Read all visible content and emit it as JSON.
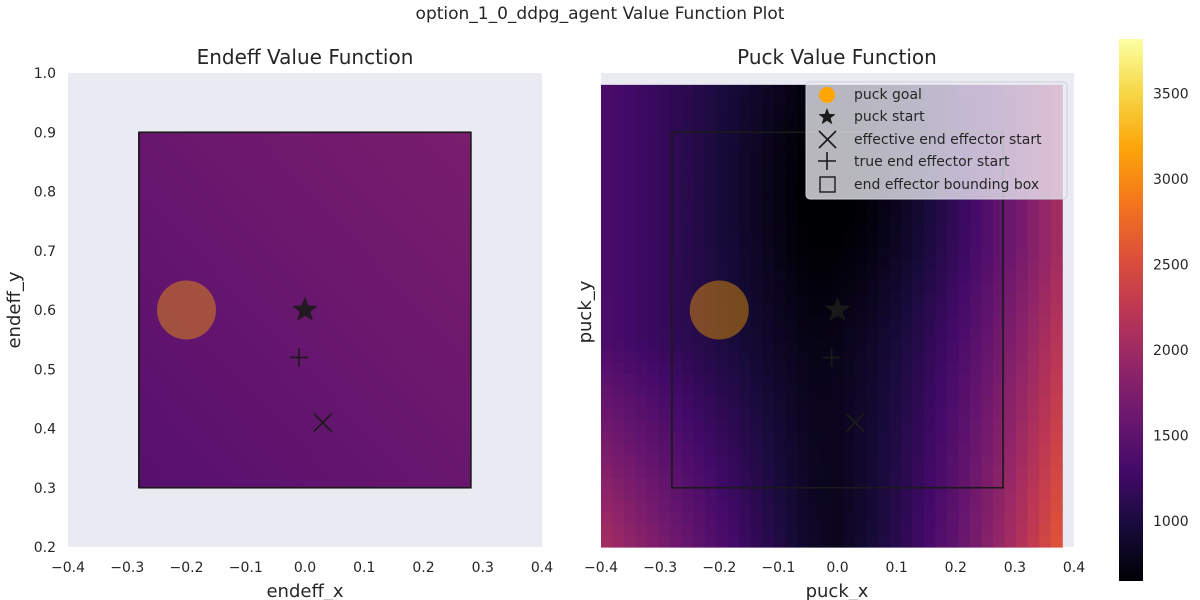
{
  "figure_title": "option_1_0_ddpg_agent Value Function Plot",
  "colors": {
    "axes_background": "#eaeaf2",
    "box_stroke": "#1a1a1a",
    "goal_fill": "#ffa500",
    "marker": "#1a1a1a"
  },
  "colorbar": {
    "colormap": "inferno",
    "range": [
      650,
      3820
    ],
    "ticks": [
      "1000",
      "1500",
      "2000",
      "2500",
      "3000",
      "3500"
    ]
  },
  "legend": {
    "placement": "upper-right",
    "items": [
      {
        "label": "puck goal",
        "icon": "filled-circle-icon"
      },
      {
        "label": "puck start",
        "icon": "star-icon"
      },
      {
        "label": "effective end effector start",
        "icon": "x-icon"
      },
      {
        "label": "true end effector start",
        "icon": "plus-icon"
      },
      {
        "label": "end effector bounding box",
        "icon": "square-icon"
      }
    ]
  },
  "chart_data": [
    {
      "type": "heatmap",
      "title": "Endeff Value Function",
      "xlabel": "endeff_x",
      "ylabel": "endeff_y",
      "xlim": [
        -0.4,
        0.4
      ],
      "ylim": [
        0.2,
        1.0
      ],
      "xticks": [
        "−0.4",
        "−0.3",
        "−0.2",
        "−0.1",
        "0.0",
        "0.1",
        "0.2",
        "0.3",
        "0.4"
      ],
      "yticks": [
        "0.2",
        "0.3",
        "0.4",
        "0.5",
        "0.6",
        "0.7",
        "0.8",
        "0.9",
        "1.0"
      ],
      "heatmap_extent": {
        "x": [
          -0.28,
          0.28
        ],
        "y": [
          0.3,
          0.9
        ]
      },
      "value_range": [
        1550,
        1900
      ],
      "bounding_box": {
        "x": [
          -0.28,
          0.28
        ],
        "y": [
          0.3,
          0.9
        ]
      },
      "markers": {
        "puck_goal": {
          "x": -0.2,
          "y": 0.6
        },
        "puck_start": {
          "x": 0.0,
          "y": 0.6
        },
        "effective_end_effector_start": {
          "x": 0.03,
          "y": 0.41
        },
        "true_end_effector_start": {
          "x": -0.01,
          "y": 0.52
        }
      }
    },
    {
      "type": "heatmap",
      "title": "Puck Value Function",
      "xlabel": "puck_x",
      "ylabel": "puck_y",
      "xlim": [
        -0.4,
        0.4
      ],
      "xticks": [
        "−0.4",
        "−0.3",
        "−0.2",
        "−0.1",
        "0.0",
        "0.1",
        "0.2",
        "0.3",
        "0.4"
      ],
      "heatmap_extent": {
        "x": [
          -0.4,
          0.38
        ],
        "y": [
          0.2,
          0.98
        ]
      },
      "grid_size": 40,
      "value_range": [
        650,
        3820
      ],
      "bounding_box": {
        "x": [
          -0.28,
          0.28
        ],
        "y": [
          0.3,
          0.9
        ]
      },
      "markers": {
        "puck_goal": {
          "x": -0.2,
          "y": 0.6
        },
        "puck_start": {
          "x": 0.0,
          "y": 0.6
        },
        "effective_end_effector_start": {
          "x": 0.03,
          "y": 0.41
        },
        "true_end_effector_start": {
          "x": -0.01,
          "y": 0.52
        }
      }
    }
  ]
}
